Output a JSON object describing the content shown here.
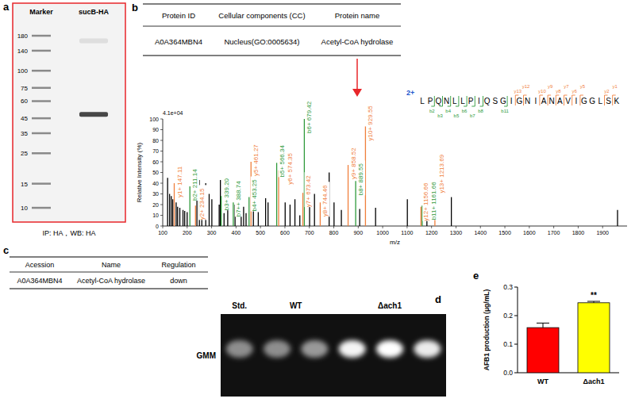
{
  "panels": {
    "a": {
      "letter": "a",
      "lane_labels": [
        "Marker",
        "sucB-HA"
      ],
      "marker_kda": [
        180,
        140,
        100,
        75,
        60,
        45,
        35,
        25,
        15,
        10
      ],
      "bands": [
        {
          "kda": 48,
          "intensity": 0.85
        },
        {
          "kda": 165,
          "intensity": 0.15
        }
      ],
      "caption": "IP: HA，WB: HA"
    },
    "b": {
      "letter": "b",
      "table": {
        "header": [
          "Protein ID",
          "Cellular components (CC)",
          "Protein name"
        ],
        "rows": [
          [
            "A0A364MBN4",
            "Nucleus(GO:0005634)",
            "Acetyl-CoA hydrolase"
          ]
        ]
      }
    },
    "c": {
      "letter": "c",
      "table": {
        "header": [
          "Acession",
          "Name",
          "Regulation"
        ],
        "rows": [
          [
            "A0A364MBN4",
            "Acetyl-CoA hydrolase",
            "down"
          ]
        ]
      }
    },
    "d": {
      "letter": "d",
      "row_label": "GMM",
      "lanes": [
        {
          "label": "Std.",
          "spots": [
            0.45
          ]
        },
        {
          "label": "WT",
          "spots": [
            0.45,
            0.5
          ]
        },
        {
          "label": "Δach1",
          "spots": [
            0.95,
            1.0,
            0.9
          ]
        }
      ]
    },
    "e": {
      "letter": "e"
    }
  },
  "chart_data": [
    {
      "type": "spectrum",
      "scale_label": "4.1e+04",
      "y_label": "Relative Intensity (%)",
      "x_label": "m/z",
      "xlim": [
        100,
        2000
      ],
      "xticks": [
        100,
        200,
        300,
        400,
        500,
        600,
        700,
        800,
        900,
        1000,
        1100,
        1200,
        1300,
        1400,
        1500,
        1600,
        1700,
        1800,
        1900
      ],
      "ylim": [
        0,
        100
      ],
      "yticks": [
        0,
        10,
        20,
        30,
        40,
        50,
        60,
        70,
        80,
        90,
        100
      ],
      "series": [
        {
          "color": "#000000",
          "x": [
            120,
            128,
            135,
            141,
            155,
            161,
            170,
            183,
            190,
            200,
            240,
            250,
            260,
            276,
            290,
            301,
            331,
            336,
            351,
            366,
            396,
            421,
            431,
            441,
            471,
            491,
            521,
            531,
            601,
            621,
            641,
            661,
            701,
            721,
            781,
            801,
            831,
            906,
            971,
            1101,
            1181,
            1281,
            1961
          ],
          "values": [
            45,
            30,
            28,
            25,
            22,
            18,
            17,
            15,
            14,
            13,
            33,
            43,
            33,
            40,
            30,
            25,
            20,
            43,
            12,
            18,
            20,
            42,
            18,
            12,
            20,
            13,
            26,
            22,
            22,
            20,
            25,
            10,
            22,
            30,
            50,
            22,
            15,
            16,
            17,
            25,
            18,
            27,
            15
          ]
        },
        {
          "color": "#2e9a3a",
          "x": [
            211.14,
            339.2,
            388.74,
            453.25,
            566.34,
            679.42,
            889.55,
            1161.66
          ],
          "values": [
            37,
            28,
            22,
            27,
            59,
            100,
            42,
            19
          ],
          "labels": [
            "b2+ 211.14",
            "b3+ 339.20",
            "b7++ 388.74",
            "b4+ 453.25",
            "b5+ 566.34",
            "b6+ 679.42",
            "b8+ 889.55",
            "b11+ 1161.66"
          ]
        },
        {
          "color": "#f07f3c",
          "x": [
            147.11,
            234.15,
            461.27,
            574.35,
            673.42,
            744.46,
            858.52,
            929.55,
            1156.66,
            1213.69
          ],
          "values": [
            40,
            19,
            60,
            52,
            31,
            22,
            57,
            93,
            18,
            44
          ],
          "labels": [
            "y1+ 147.11",
            "y2+ 234.15",
            "y5+ 461.27",
            "y6+ 574.35",
            "y7+ 673.42",
            "y8+ 744.46",
            "y9+ 858.52",
            "y10+ 929.55",
            "y12+ 1156.66",
            "y13+ 1213.69"
          ]
        }
      ],
      "peptide": {
        "sequence": "LPQNLLPIQSGIGNIANAVIGGLSK",
        "charge": "2+",
        "b_label": "b",
        "b_ions": [
          2,
          3,
          4,
          5,
          6,
          7,
          8,
          11
        ],
        "y_label": "y",
        "y_ions": [
          1,
          2,
          5,
          6,
          7,
          8,
          9,
          10,
          12,
          13
        ]
      }
    },
    {
      "type": "bar",
      "categories": [
        "WT",
        "Δach1"
      ],
      "values": [
        0.158,
        0.245
      ],
      "errors": [
        0.016,
        0.005
      ],
      "colors": [
        "#ff0000",
        "#ffff00"
      ],
      "y_label": "AFB1 production (μg/mL)",
      "ylim": [
        0,
        0.3
      ],
      "yticks": [
        {
          "value": 0,
          "label": "0.0"
        },
        0.1,
        0.2,
        0.3
      ],
      "annotations": [
        {
          "index": 1,
          "text": "**"
        }
      ]
    }
  ]
}
